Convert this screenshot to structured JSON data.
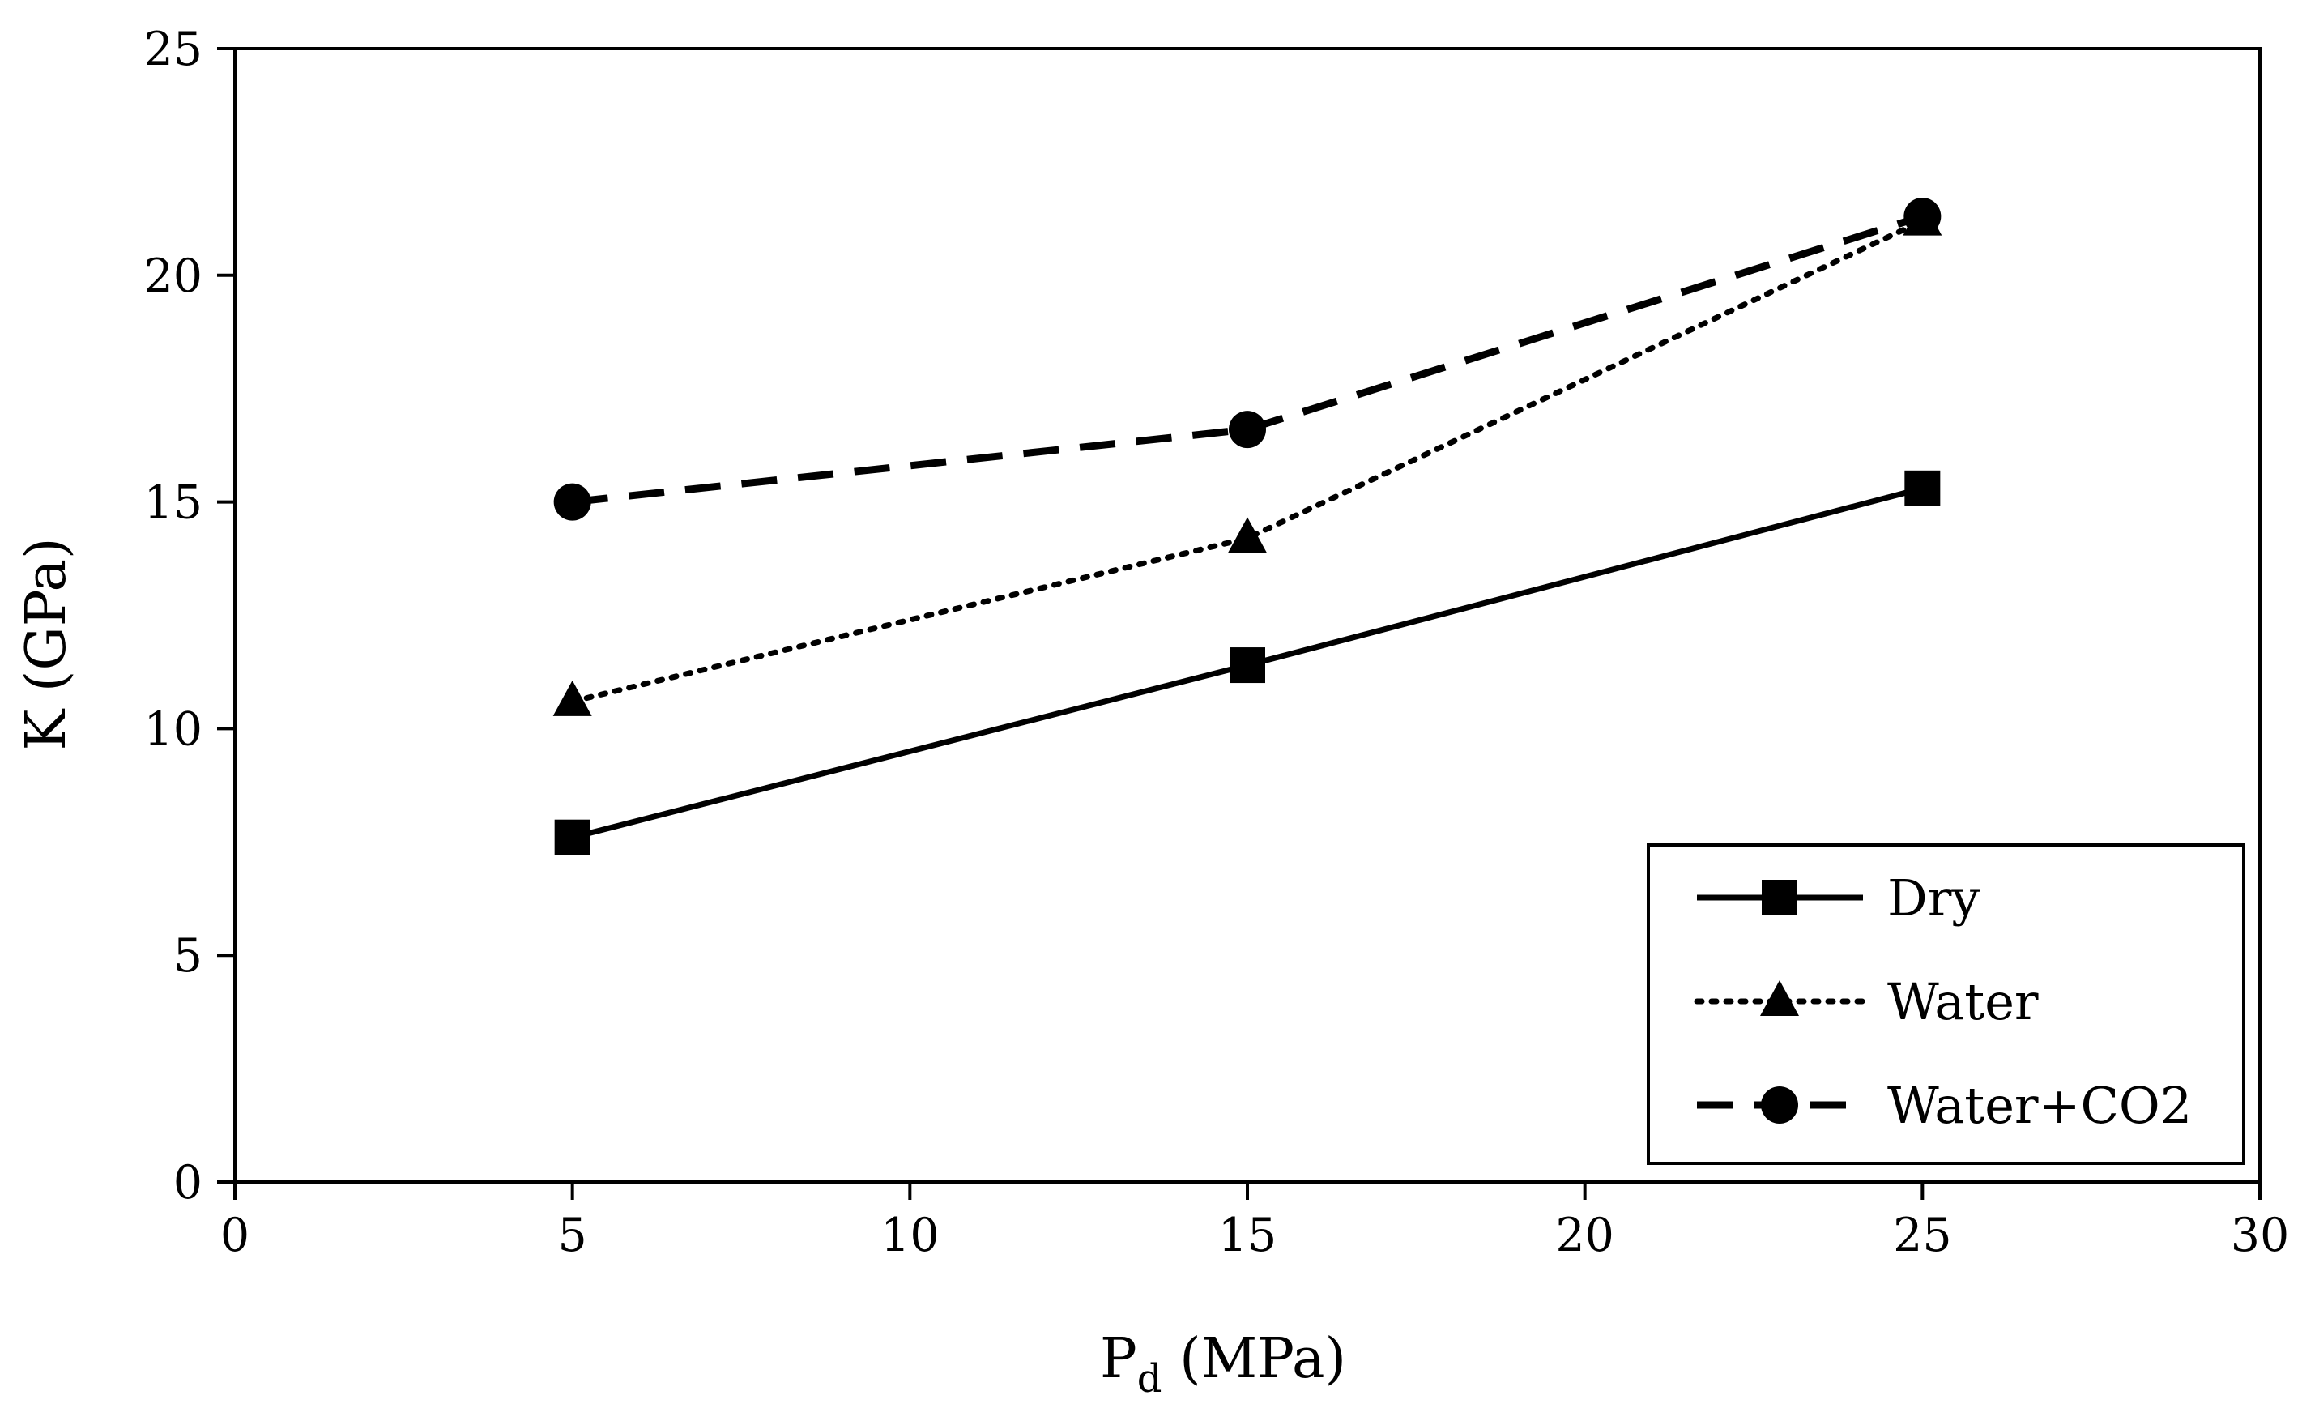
{
  "chart_data": {
    "type": "line",
    "title": "",
    "xlabel": {
      "main": "P",
      "sub": "d",
      "unit": " (MPa)"
    },
    "ylabel": "K (GPa)",
    "xlim": [
      0,
      30
    ],
    "ylim": [
      0,
      25
    ],
    "xticks": [
      0,
      5,
      10,
      15,
      20,
      25,
      30
    ],
    "yticks": [
      0,
      5,
      10,
      15,
      20,
      25
    ],
    "grid": false,
    "legend_position": "bottom-right",
    "series": [
      {
        "name": "Dry",
        "x": [
          5,
          15,
          25
        ],
        "values": [
          7.6,
          11.4,
          15.3
        ],
        "line_style": "solid",
        "marker": "square",
        "color": "#000000"
      },
      {
        "name": "Water",
        "x": [
          5,
          15,
          25
        ],
        "values": [
          10.6,
          14.2,
          21.2
        ],
        "line_style": "dotted",
        "marker": "triangle",
        "color": "#000000"
      },
      {
        "name": "Water+CO2",
        "x": [
          5,
          15,
          25
        ],
        "values": [
          15.0,
          16.6,
          21.3
        ],
        "line_style": "dashed",
        "marker": "circle",
        "color": "#000000"
      }
    ]
  }
}
